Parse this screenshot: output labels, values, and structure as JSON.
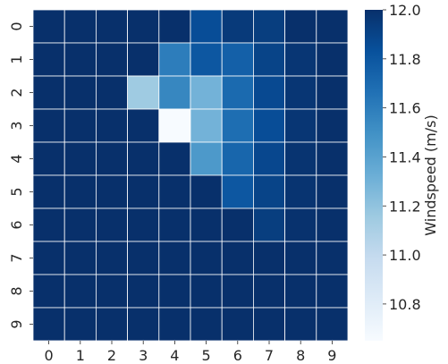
{
  "chart_data": {
    "type": "heatmap",
    "x_labels": [
      "0",
      "1",
      "2",
      "3",
      "4",
      "5",
      "6",
      "7",
      "8",
      "9"
    ],
    "y_labels": [
      "0",
      "1",
      "2",
      "3",
      "4",
      "5",
      "6",
      "7",
      "8",
      "9"
    ],
    "values": [
      [
        12.0,
        12.0,
        12.0,
        12.0,
        12.0,
        11.85,
        11.95,
        11.93,
        12.0,
        12.0
      ],
      [
        12.0,
        12.0,
        12.0,
        12.0,
        11.6,
        11.8,
        11.75,
        11.9,
        11.97,
        12.0
      ],
      [
        12.0,
        12.0,
        12.0,
        11.15,
        11.55,
        11.3,
        11.7,
        11.87,
        11.97,
        12.0
      ],
      [
        12.0,
        12.0,
        12.0,
        12.0,
        10.65,
        11.3,
        11.68,
        11.85,
        11.97,
        12.0
      ],
      [
        12.0,
        12.0,
        12.0,
        12.0,
        12.0,
        11.45,
        11.72,
        11.88,
        11.98,
        12.0
      ],
      [
        12.0,
        12.0,
        12.0,
        12.0,
        12.0,
        12.0,
        11.8,
        11.9,
        11.98,
        12.0
      ],
      [
        12.0,
        12.0,
        12.0,
        12.0,
        12.0,
        12.0,
        12.0,
        11.93,
        11.99,
        12.0
      ],
      [
        12.0,
        12.0,
        12.0,
        12.0,
        12.0,
        12.0,
        12.0,
        12.0,
        12.0,
        12.0
      ],
      [
        12.0,
        12.0,
        12.0,
        12.0,
        12.0,
        12.0,
        12.0,
        12.0,
        12.0,
        12.0
      ],
      [
        12.0,
        12.0,
        12.0,
        12.0,
        12.0,
        12.0,
        12.0,
        12.0,
        12.0,
        12.0
      ]
    ],
    "colorbar": {
      "label": "Windspeed (m/s)",
      "range": [
        10.65,
        12.0
      ],
      "ticks": [
        "10.8",
        "11.0",
        "11.2",
        "11.4",
        "11.6",
        "11.8",
        "12.0"
      ],
      "tick_values": [
        10.8,
        11.0,
        11.2,
        11.4,
        11.6,
        11.8,
        12.0
      ],
      "colormap": "Blues",
      "stops": [
        "#f7fbff",
        "#deebf7",
        "#c6dbef",
        "#9ecae1",
        "#6baed6",
        "#4292c6",
        "#2171b5",
        "#08519c",
        "#08306b"
      ]
    },
    "grid_line_color": "#ffffff",
    "xlabel": "",
    "ylabel": ""
  }
}
